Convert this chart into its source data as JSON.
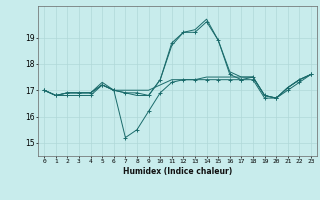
{
  "title": "",
  "xlabel": "Humidex (Indice chaleur)",
  "ylabel": "",
  "bg_color": "#c8ecec",
  "grid_color": "#b0d8d8",
  "line_color": "#1a6b6b",
  "xlim": [
    -0.5,
    23.5
  ],
  "ylim": [
    14.5,
    20.2
  ],
  "yticks": [
    15,
    16,
    17,
    18,
    19
  ],
  "xtick_labels": [
    "0",
    "1",
    "2",
    "3",
    "4",
    "5",
    "6",
    "7",
    "8",
    "9",
    "10",
    "11",
    "12",
    "13",
    "14",
    "15",
    "16",
    "17",
    "18",
    "19",
    "20",
    "21",
    "22",
    "23"
  ],
  "lines": [
    {
      "x": [
        0,
        1,
        2,
        3,
        4,
        5,
        6,
        7,
        8,
        9,
        10,
        11,
        12,
        13,
        14,
        15,
        16,
        17,
        18,
        19,
        20,
        21,
        22,
        23
      ],
      "y": [
        17.0,
        16.8,
        16.8,
        16.8,
        16.8,
        17.2,
        17.0,
        15.2,
        15.5,
        16.2,
        16.9,
        17.3,
        17.4,
        17.4,
        17.4,
        17.4,
        17.4,
        17.4,
        17.5,
        16.8,
        16.7,
        17.0,
        17.3,
        17.6
      ],
      "marker": true
    },
    {
      "x": [
        0,
        1,
        2,
        3,
        4,
        5,
        6,
        7,
        8,
        9,
        10,
        11,
        12,
        13,
        14,
        15,
        16,
        17,
        18,
        19,
        20,
        21,
        22,
        23
      ],
      "y": [
        17.0,
        16.8,
        16.9,
        16.9,
        16.9,
        17.2,
        17.0,
        16.9,
        16.9,
        16.8,
        17.4,
        18.8,
        19.2,
        19.2,
        19.6,
        18.9,
        17.6,
        17.4,
        17.4,
        16.7,
        16.7,
        17.1,
        17.4,
        17.6
      ],
      "marker": true
    },
    {
      "x": [
        0,
        1,
        2,
        3,
        4,
        5,
        6,
        7,
        8,
        9,
        10,
        11,
        12,
        13,
        14,
        15,
        16,
        17,
        18,
        19,
        20,
        21,
        22,
        23
      ],
      "y": [
        17.0,
        16.8,
        16.9,
        16.9,
        16.9,
        17.3,
        17.0,
        16.9,
        16.8,
        16.8,
        17.4,
        18.7,
        19.2,
        19.3,
        19.7,
        18.9,
        17.7,
        17.5,
        17.5,
        16.8,
        16.7,
        17.1,
        17.4,
        17.6
      ],
      "marker": false
    },
    {
      "x": [
        0,
        1,
        2,
        3,
        4,
        5,
        6,
        7,
        8,
        9,
        10,
        11,
        12,
        13,
        14,
        15,
        16,
        17,
        18,
        19,
        20,
        21,
        22,
        23
      ],
      "y": [
        17.0,
        16.8,
        16.9,
        16.9,
        16.9,
        17.2,
        17.0,
        17.0,
        17.0,
        17.0,
        17.2,
        17.4,
        17.4,
        17.4,
        17.5,
        17.5,
        17.5,
        17.5,
        17.5,
        16.8,
        16.7,
        17.1,
        17.4,
        17.6
      ],
      "marker": false
    }
  ]
}
